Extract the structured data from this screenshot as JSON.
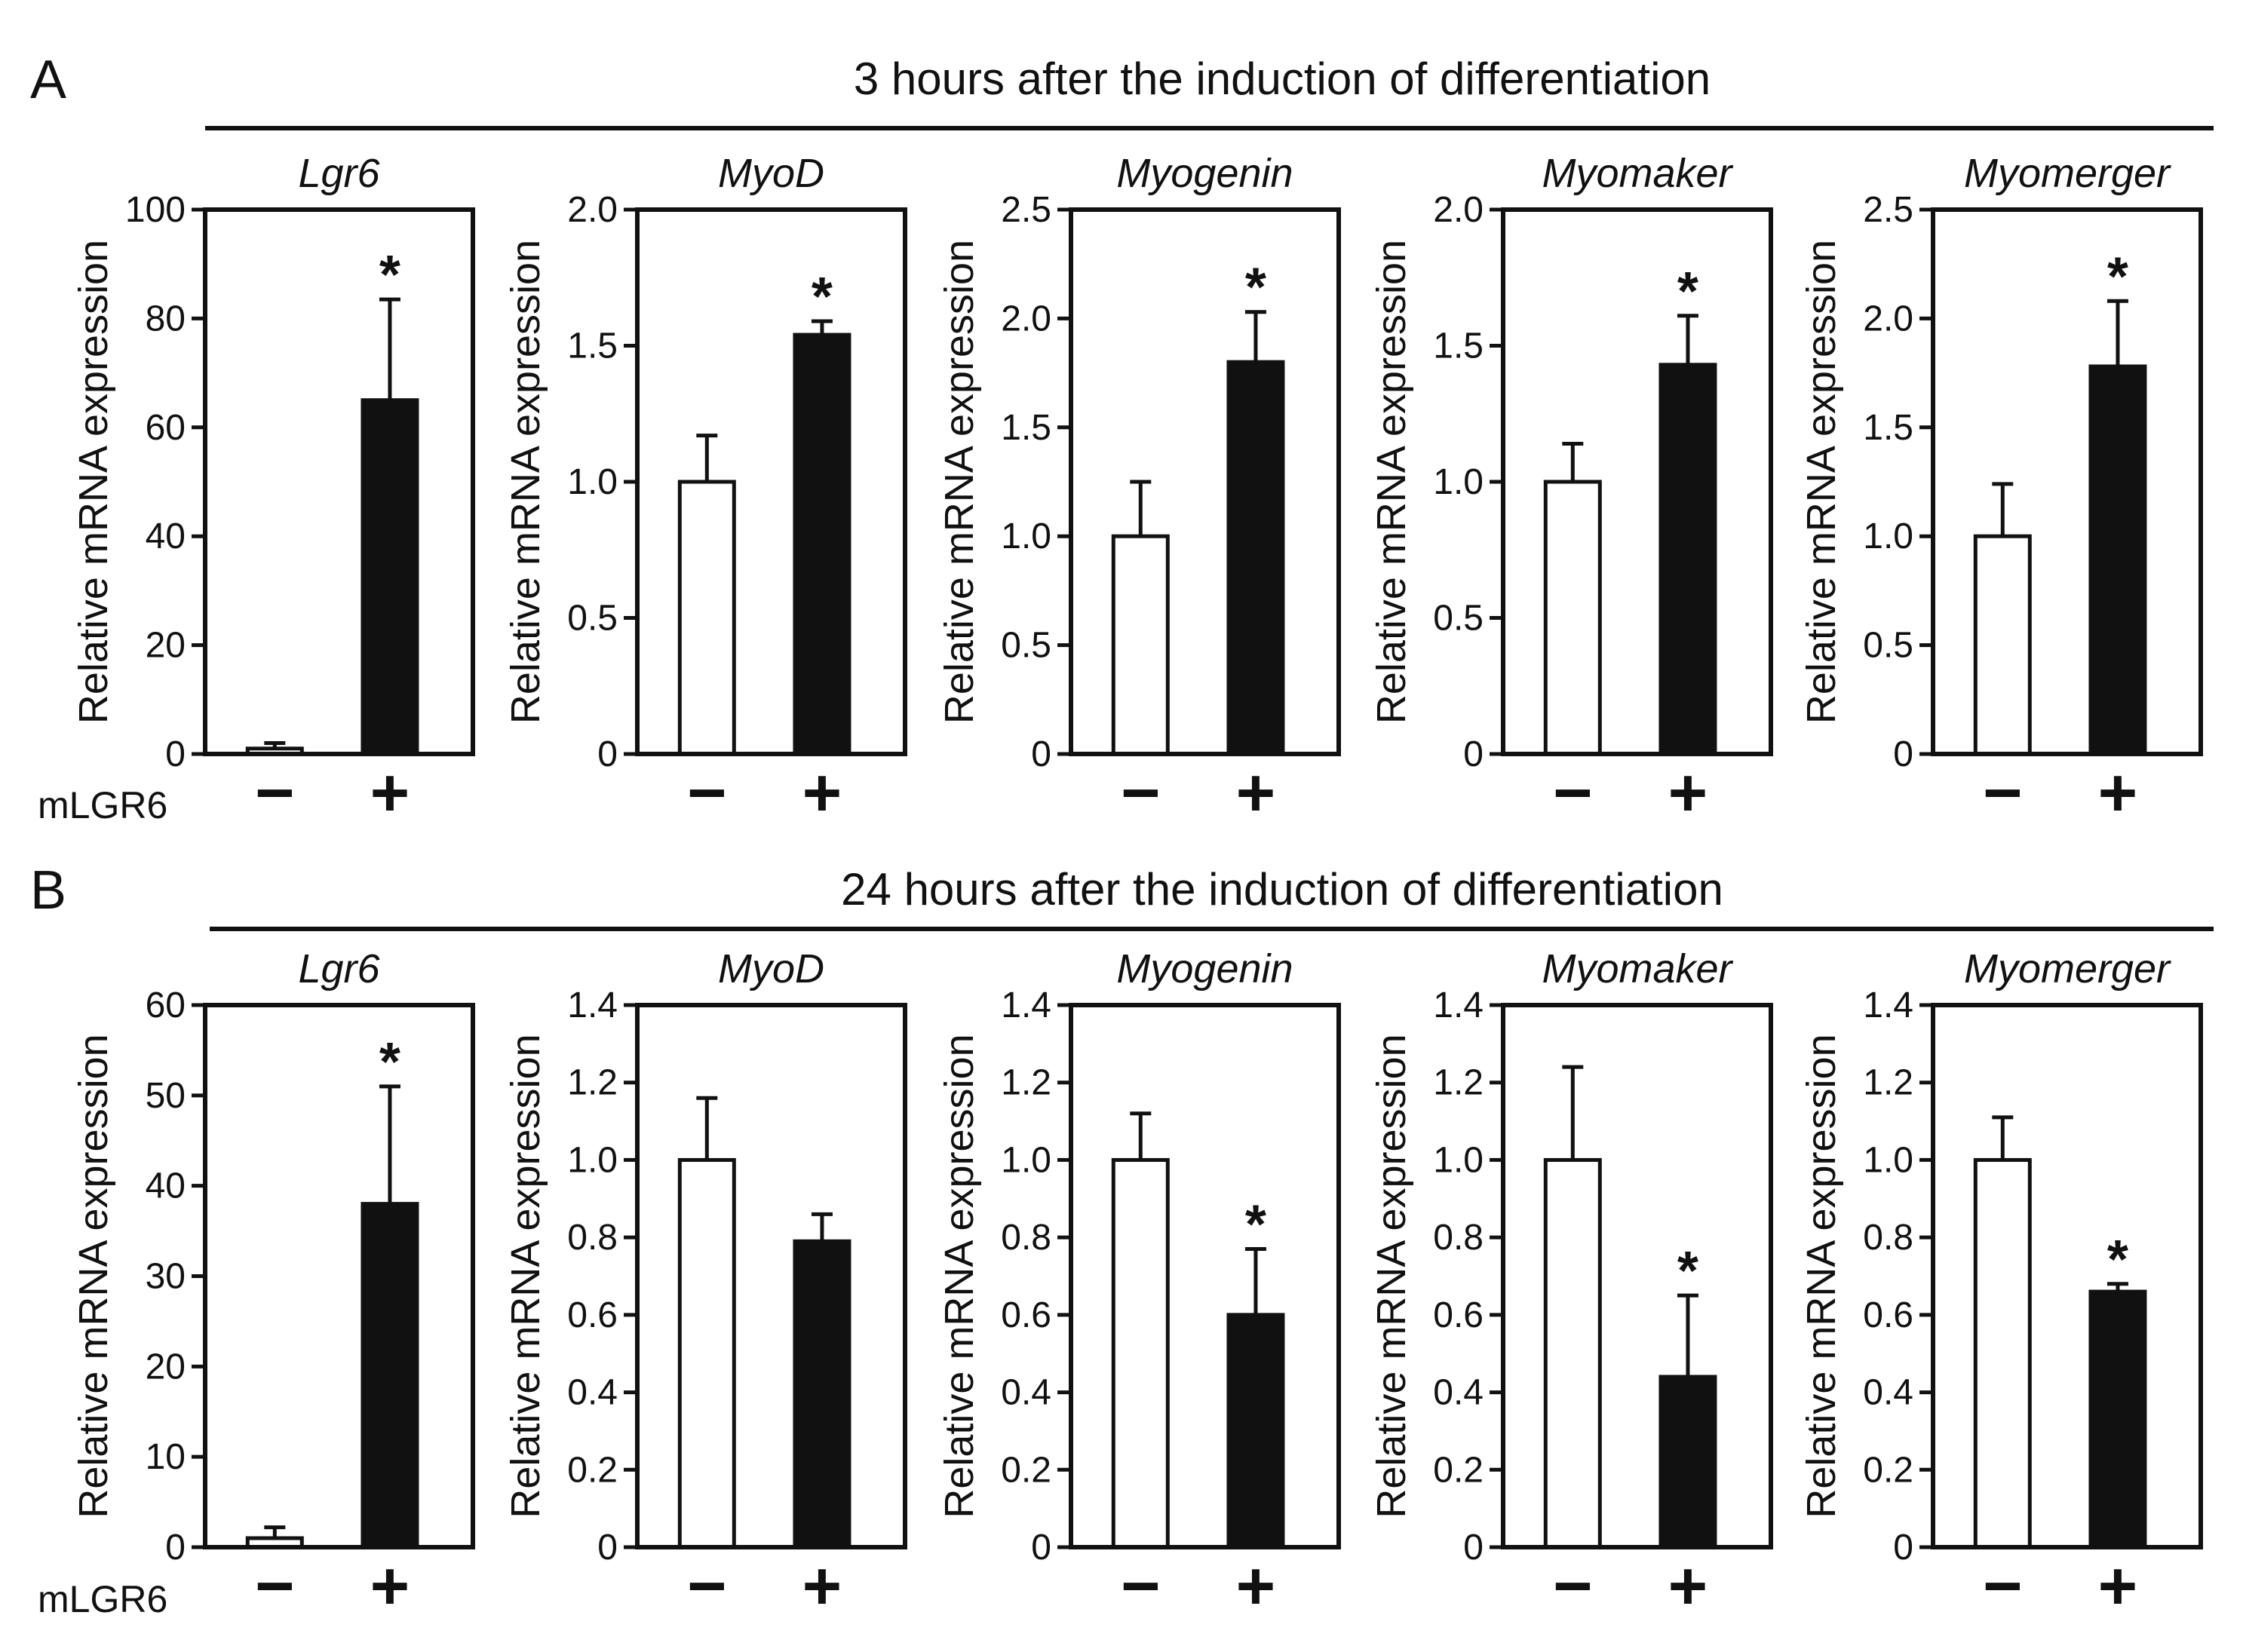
{
  "sections": [
    {
      "letter": "A",
      "title": "3 hours after the induction of differentiation",
      "group_label": "mLGR6"
    },
    {
      "letter": "B",
      "title": "24 hours after the induction of differentiation",
      "group_label": "mLGR6"
    }
  ],
  "colors": {
    "control": "#ffffff",
    "treated": "#111111",
    "axis": "#111111"
  },
  "chart_data": [
    {
      "type": "bar",
      "section": "A",
      "title": "Lgr6",
      "ylabel": "Relative mRNA expression",
      "categories": [
        "−",
        "+"
      ],
      "values": [
        1,
        65
      ],
      "errors": [
        1,
        18.5
      ],
      "ylim": [
        0,
        100
      ],
      "yticks": [
        "0",
        "20",
        "40",
        "60",
        "80",
        "100"
      ],
      "significant": [
        false,
        true
      ]
    },
    {
      "type": "bar",
      "section": "A",
      "title": "MyoD",
      "ylabel": "Relative mRNA expression",
      "categories": [
        "−",
        "+"
      ],
      "values": [
        1.0,
        1.54
      ],
      "errors": [
        0.17,
        0.05
      ],
      "ylim": [
        0,
        2.0
      ],
      "yticks": [
        "0",
        "0.5",
        "1.0",
        "1.5",
        "2.0"
      ],
      "significant": [
        false,
        true
      ]
    },
    {
      "type": "bar",
      "section": "A",
      "title": "Myogenin",
      "ylabel": "Relative mRNA expression",
      "categories": [
        "−",
        "+"
      ],
      "values": [
        1.0,
        1.8
      ],
      "errors": [
        0.25,
        0.23
      ],
      "ylim": [
        0,
        2.5
      ],
      "yticks": [
        "0",
        "0.5",
        "1.0",
        "1.5",
        "2.0",
        "2.5"
      ],
      "significant": [
        false,
        true
      ]
    },
    {
      "type": "bar",
      "section": "A",
      "title": "Myomaker",
      "ylabel": "Relative mRNA expression",
      "categories": [
        "−",
        "+"
      ],
      "values": [
        1.0,
        1.43
      ],
      "errors": [
        0.14,
        0.18
      ],
      "ylim": [
        0,
        2.0
      ],
      "yticks": [
        "0",
        "0.5",
        "1.0",
        "1.5",
        "2.0"
      ],
      "significant": [
        false,
        true
      ]
    },
    {
      "type": "bar",
      "section": "A",
      "title": "Myomerger",
      "ylabel": "Relative mRNA expression",
      "categories": [
        "−",
        "+"
      ],
      "values": [
        1.0,
        1.78
      ],
      "errors": [
        0.24,
        0.3
      ],
      "ylim": [
        0,
        2.5
      ],
      "yticks": [
        "0",
        "0.5",
        "1.0",
        "1.5",
        "2.0",
        "2.5"
      ],
      "significant": [
        false,
        true
      ]
    },
    {
      "type": "bar",
      "section": "B",
      "title": "Lgr6",
      "ylabel": "Relative mRNA expression",
      "categories": [
        "−",
        "+"
      ],
      "values": [
        1,
        38
      ],
      "errors": [
        1.2,
        13
      ],
      "ylim": [
        0,
        60
      ],
      "yticks": [
        "0",
        "10",
        "20",
        "30",
        "40",
        "50",
        "60"
      ],
      "significant": [
        false,
        true
      ]
    },
    {
      "type": "bar",
      "section": "B",
      "title": "MyoD",
      "ylabel": "Relative mRNA expression",
      "categories": [
        "−",
        "+"
      ],
      "values": [
        1.0,
        0.79
      ],
      "errors": [
        0.16,
        0.07
      ],
      "ylim": [
        0,
        1.4
      ],
      "yticks": [
        "0",
        "0.2",
        "0.4",
        "0.6",
        "0.8",
        "1.0",
        "1.2",
        "1.4"
      ],
      "significant": [
        false,
        false
      ]
    },
    {
      "type": "bar",
      "section": "B",
      "title": "Myogenin",
      "ylabel": "Relative mRNA expression",
      "categories": [
        "−",
        "+"
      ],
      "values": [
        1.0,
        0.6
      ],
      "errors": [
        0.12,
        0.17
      ],
      "ylim": [
        0,
        1.4
      ],
      "yticks": [
        "0",
        "0.2",
        "0.4",
        "0.6",
        "0.8",
        "1.0",
        "1.2",
        "1.4"
      ],
      "significant": [
        false,
        true
      ]
    },
    {
      "type": "bar",
      "section": "B",
      "title": "Myomaker",
      "ylabel": "Relative mRNA expression",
      "categories": [
        "−",
        "+"
      ],
      "values": [
        1.0,
        0.44
      ],
      "errors": [
        0.24,
        0.21
      ],
      "ylim": [
        0,
        1.4
      ],
      "yticks": [
        "0",
        "0.2",
        "0.4",
        "0.6",
        "0.8",
        "1.0",
        "1.2",
        "1.4"
      ],
      "significant": [
        false,
        true
      ]
    },
    {
      "type": "bar",
      "section": "B",
      "title": "Myomerger",
      "ylabel": "Relative mRNA expression",
      "categories": [
        "−",
        "+"
      ],
      "values": [
        1.0,
        0.66
      ],
      "errors": [
        0.11,
        0.02
      ],
      "ylim": [
        0,
        1.4
      ],
      "yticks": [
        "0",
        "0.2",
        "0.4",
        "0.6",
        "0.8",
        "1.0",
        "1.2",
        "1.4"
      ],
      "significant": [
        false,
        true
      ]
    }
  ]
}
